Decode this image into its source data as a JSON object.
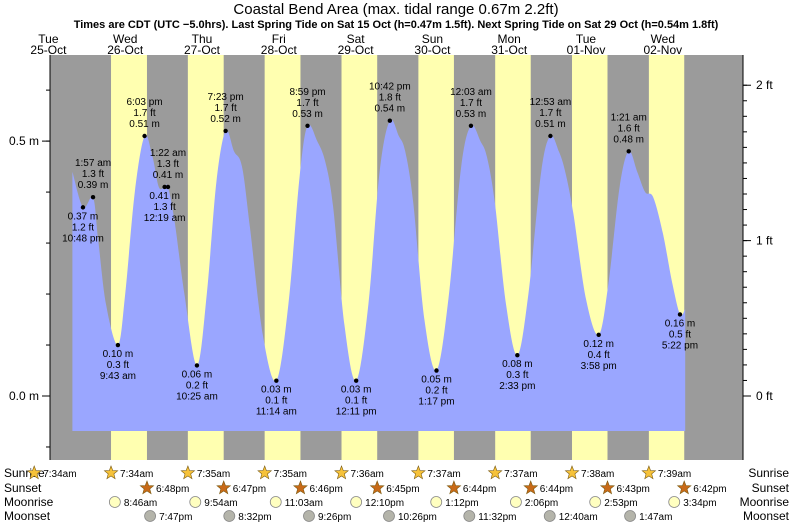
{
  "chart_data": {
    "type": "area",
    "title": "Coastal Bend Area (max. tidal range 0.67m 2.2ft)",
    "subtitle": "Times are CDT (UTC −5.0hrs). Last Spring Tide on Sat 15 Oct (h=0.47m 1.5ft). Next Spring Tide on Sat 29 Oct (h=0.54m 1.8ft)",
    "x_start_label": "Tue 25-Oct 00:00",
    "x_range_hours": [
      0,
      216
    ],
    "ylim_m": [
      -0.13,
      0.67
    ],
    "left_axis": {
      "ticks": [
        {
          "v": 0.0,
          "label": "0.0 m"
        },
        {
          "v": 0.5,
          "label": "0.5 m"
        }
      ]
    },
    "right_axis": {
      "ticks": [
        {
          "v": 0.0,
          "label": "0 ft"
        },
        {
          "v": 0.3048,
          "label": "1 ft"
        },
        {
          "v": 0.6096,
          "label": "2 ft"
        }
      ]
    },
    "days": [
      {
        "dow": "Tue",
        "date": "25-Oct"
      },
      {
        "dow": "Wed",
        "date": "26-Oct"
      },
      {
        "dow": "Thu",
        "date": "27-Oct"
      },
      {
        "dow": "Fri",
        "date": "28-Oct"
      },
      {
        "dow": "Sat",
        "date": "29-Oct"
      },
      {
        "dow": "Sun",
        "date": "30-Oct"
      },
      {
        "dow": "Mon",
        "date": "31-Oct"
      },
      {
        "dow": "Tue",
        "date": "01-Nov"
      },
      {
        "dow": "Wed",
        "date": "02-Nov"
      }
    ],
    "daylight_hours": [
      [
        31.57,
        42.8
      ],
      [
        55.58,
        66.78
      ],
      [
        79.58,
        90.77
      ],
      [
        103.6,
        114.75
      ],
      [
        127.62,
        138.73
      ],
      [
        151.62,
        162.73
      ],
      [
        175.63,
        186.72
      ],
      [
        199.65,
        210.7
      ]
    ],
    "tides": [
      {
        "t": 22.8,
        "h": 0.37,
        "m": "0.37 m",
        "ft": "1.2 ft",
        "time": "10:48 pm",
        "kind": "low"
      },
      {
        "t": 25.95,
        "h": 0.39,
        "m": "0.39 m",
        "ft": "1.3 ft",
        "time": "1:57 am",
        "kind": "high"
      },
      {
        "t": 33.72,
        "h": 0.1,
        "m": "0.10 m",
        "ft": "0.3 ft",
        "time": "9:43 am",
        "kind": "low"
      },
      {
        "t": 42.05,
        "h": 0.51,
        "m": "0.51 m",
        "ft": "1.7 ft",
        "time": "6:03 pm",
        "kind": "high"
      },
      {
        "t": 48.32,
        "h": 0.41,
        "m": "0.41 m",
        "ft": "1.3 ft",
        "time": "12:19 am",
        "kind": "low"
      },
      {
        "t": 49.37,
        "h": 0.41,
        "m": "0.41 m",
        "ft": "1.3 ft",
        "time": "1:22 am",
        "kind": "high"
      },
      {
        "t": 58.42,
        "h": 0.06,
        "m": "0.06 m",
        "ft": "0.2 ft",
        "time": "10:25 am",
        "kind": "low"
      },
      {
        "t": 67.38,
        "h": 0.52,
        "m": "0.52 m",
        "ft": "1.7 ft",
        "time": "7:23 pm",
        "kind": "high"
      },
      {
        "t": 83.23,
        "h": 0.03,
        "m": "0.03 m",
        "ft": "0.1 ft",
        "time": "11:14 am",
        "kind": "low"
      },
      {
        "t": 92.98,
        "h": 0.53,
        "m": "0.53 m",
        "ft": "1.7 ft",
        "time": "8:59 pm",
        "kind": "high"
      },
      {
        "t": 108.18,
        "h": 0.03,
        "m": "0.03 m",
        "ft": "0.1 ft",
        "time": "12:11 pm",
        "kind": "low"
      },
      {
        "t": 118.7,
        "h": 0.54,
        "m": "0.54 m",
        "ft": "1.8 ft",
        "time": "10:42 pm",
        "kind": "high"
      },
      {
        "t": 133.28,
        "h": 0.05,
        "m": "0.05 m",
        "ft": "0.2 ft",
        "time": "1:17 pm",
        "kind": "low"
      },
      {
        "t": 144.05,
        "h": 0.53,
        "m": "0.53 m",
        "ft": "1.7 ft",
        "time": "12:03 am",
        "kind": "high"
      },
      {
        "t": 158.55,
        "h": 0.08,
        "m": "0.08 m",
        "ft": "0.3 ft",
        "time": "2:33 pm",
        "kind": "low"
      },
      {
        "t": 168.88,
        "h": 0.51,
        "m": "0.51 m",
        "ft": "1.7 ft",
        "time": "12:53 am",
        "kind": "high"
      },
      {
        "t": 183.97,
        "h": 0.12,
        "m": "0.12 m",
        "ft": "0.4 ft",
        "time": "3:58 pm",
        "kind": "low"
      },
      {
        "t": 193.35,
        "h": 0.48,
        "m": "0.48 m",
        "ft": "1.6 ft",
        "time": "1:21 am",
        "kind": "high"
      },
      {
        "t": 209.37,
        "h": 0.16,
        "m": "0.16 m",
        "ft": "0.5 ft",
        "time": "5:22 pm",
        "kind": "low"
      }
    ],
    "curve": [
      [
        19.5,
        0.44
      ],
      [
        22.8,
        0.37
      ],
      [
        25.95,
        0.39
      ],
      [
        27.5,
        0.31
      ],
      [
        30,
        0.18
      ],
      [
        33.72,
        0.1
      ],
      [
        36,
        0.2
      ],
      [
        39,
        0.4
      ],
      [
        42.05,
        0.51
      ],
      [
        44.5,
        0.47
      ],
      [
        46.5,
        0.41
      ],
      [
        48.32,
        0.41
      ],
      [
        49.37,
        0.41
      ],
      [
        51.5,
        0.34
      ],
      [
        54.5,
        0.2
      ],
      [
        58.42,
        0.06
      ],
      [
        61.5,
        0.2
      ],
      [
        64.5,
        0.42
      ],
      [
        67.38,
        0.52
      ],
      [
        70,
        0.48
      ],
      [
        72.5,
        0.45
      ],
      [
        75,
        0.33
      ],
      [
        79,
        0.12
      ],
      [
        83.23,
        0.03
      ],
      [
        87,
        0.18
      ],
      [
        90.5,
        0.43
      ],
      [
        92.98,
        0.53
      ],
      [
        96,
        0.5
      ],
      [
        98.5,
        0.46
      ],
      [
        101,
        0.37
      ],
      [
        104.5,
        0.14
      ],
      [
        108.18,
        0.03
      ],
      [
        112,
        0.18
      ],
      [
        115.5,
        0.44
      ],
      [
        118.7,
        0.54
      ],
      [
        121.5,
        0.51
      ],
      [
        123.5,
        0.48
      ],
      [
        126,
        0.38
      ],
      [
        129.5,
        0.15
      ],
      [
        133.28,
        0.05
      ],
      [
        137,
        0.19
      ],
      [
        141,
        0.45
      ],
      [
        144.05,
        0.53
      ],
      [
        147,
        0.5
      ],
      [
        149,
        0.47
      ],
      [
        151.5,
        0.38
      ],
      [
        155,
        0.18
      ],
      [
        158.55,
        0.08
      ],
      [
        162,
        0.2
      ],
      [
        166,
        0.44
      ],
      [
        168.88,
        0.51
      ],
      [
        171.5,
        0.48
      ],
      [
        173.5,
        0.44
      ],
      [
        176,
        0.36
      ],
      [
        180,
        0.19
      ],
      [
        183.97,
        0.12
      ],
      [
        187,
        0.22
      ],
      [
        190.5,
        0.41
      ],
      [
        193.35,
        0.48
      ],
      [
        196,
        0.44
      ],
      [
        198.5,
        0.4
      ],
      [
        201,
        0.39
      ],
      [
        204,
        0.32
      ],
      [
        207,
        0.22
      ],
      [
        209.37,
        0.16
      ],
      [
        211,
        0.17
      ]
    ]
  },
  "rows": [
    {
      "label": "Sunrise",
      "icon": "sun-icon",
      "items": [
        {
          "t": 7.57,
          "text": "7:34am"
        },
        {
          "t": 31.57,
          "text": "7:34am"
        },
        {
          "t": 55.58,
          "text": "7:35am"
        },
        {
          "t": 79.58,
          "text": "7:35am"
        },
        {
          "t": 103.6,
          "text": "7:36am"
        },
        {
          "t": 127.62,
          "text": "7:37am"
        },
        {
          "t": 151.62,
          "text": "7:37am"
        },
        {
          "t": 175.63,
          "text": "7:38am"
        },
        {
          "t": 199.65,
          "text": "7:39am"
        }
      ]
    },
    {
      "label": "Sunset",
      "icon": "sunset-icon",
      "items": [
        {
          "t": 42.8,
          "text": "6:48pm"
        },
        {
          "t": 66.78,
          "text": "6:47pm"
        },
        {
          "t": 90.77,
          "text": "6:46pm"
        },
        {
          "t": 114.75,
          "text": "6:45pm"
        },
        {
          "t": 138.73,
          "text": "6:44pm"
        },
        {
          "t": 162.73,
          "text": "6:44pm"
        },
        {
          "t": 186.72,
          "text": "6:43pm"
        },
        {
          "t": 210.7,
          "text": "6:42pm"
        }
      ]
    },
    {
      "label": "Moonrise",
      "icon": "moonrise-icon",
      "items": [
        {
          "t": 32.77,
          "text": "8:46am"
        },
        {
          "t": 57.9,
          "text": "9:54am"
        },
        {
          "t": 83.05,
          "text": "11:03am"
        },
        {
          "t": 108.17,
          "text": "12:10pm"
        },
        {
          "t": 133.2,
          "text": "1:12pm"
        },
        {
          "t": 158.1,
          "text": "2:06pm"
        },
        {
          "t": 182.88,
          "text": "2:53pm"
        },
        {
          "t": 207.57,
          "text": "3:34pm"
        }
      ]
    },
    {
      "label": "Moonset",
      "icon": "moonset-icon",
      "items": [
        {
          "t": 43.78,
          "text": "7:47pm"
        },
        {
          "t": 68.53,
          "text": "8:32pm"
        },
        {
          "t": 93.43,
          "text": "9:26pm"
        },
        {
          "t": 118.43,
          "text": "10:26pm"
        },
        {
          "t": 143.53,
          "text": "11:32pm"
        },
        {
          "t": 168.67,
          "text": "12:40am"
        },
        {
          "t": 193.78,
          "text": "1:47am"
        }
      ]
    }
  ],
  "colors": {
    "night": "#9b9b9b",
    "day": "#ffffb0",
    "tide": "#9aa6ff",
    "day_label": "#ff0000",
    "sun": "#f6c23a",
    "sunset": "#c86a18",
    "moonrise": "#ffffc0",
    "moonset": "#b4b4aa"
  }
}
